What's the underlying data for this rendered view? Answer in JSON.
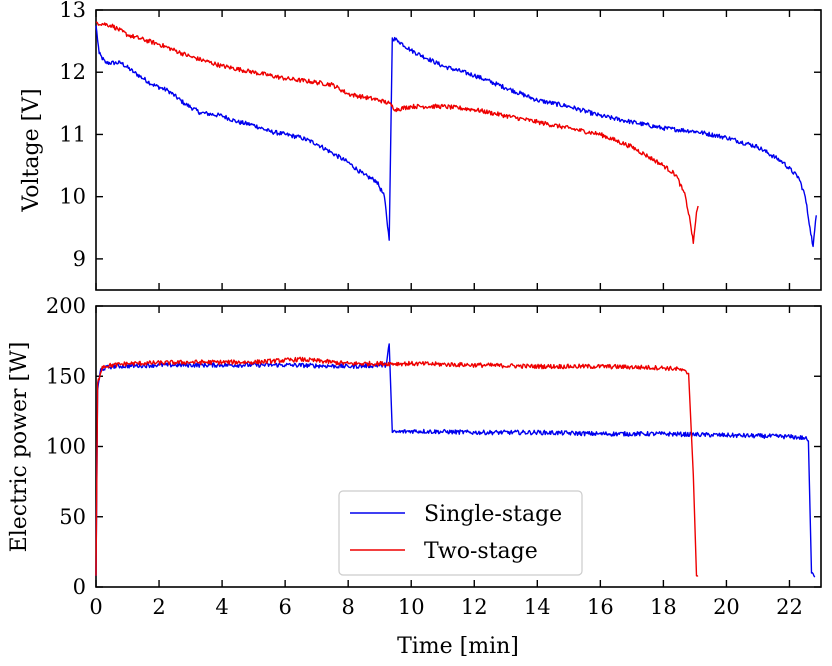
{
  "chart_data": [
    {
      "type": "line",
      "panel": "top",
      "ylabel": "Voltage [V]",
      "xlabel": "",
      "xlim": [
        0,
        23
      ],
      "ylim": [
        8.5,
        13
      ],
      "yticks": [
        9,
        10,
        11,
        12,
        13
      ],
      "series": [
        {
          "name": "Single-stage",
          "color": "#0000ee",
          "points": [
            [
              0,
              12.75
            ],
            [
              0.1,
              12.3
            ],
            [
              0.3,
              12.15
            ],
            [
              0.8,
              12.15
            ],
            [
              1.2,
              12.0
            ],
            [
              1.8,
              11.8
            ],
            [
              2.3,
              11.7
            ],
            [
              2.8,
              11.5
            ],
            [
              3.3,
              11.35
            ],
            [
              4.0,
              11.3
            ],
            [
              4.5,
              11.2
            ],
            [
              5.0,
              11.15
            ],
            [
              5.5,
              11.05
            ],
            [
              6.0,
              11.0
            ],
            [
              6.5,
              10.95
            ],
            [
              7.0,
              10.85
            ],
            [
              7.5,
              10.7
            ],
            [
              8.0,
              10.55
            ],
            [
              8.5,
              10.35
            ],
            [
              8.9,
              10.25
            ],
            [
              9.15,
              10.0
            ],
            [
              9.3,
              9.3
            ],
            [
              9.4,
              12.55
            ],
            [
              9.6,
              12.5
            ],
            [
              10.0,
              12.35
            ],
            [
              11.0,
              12.1
            ],
            [
              12.0,
              11.95
            ],
            [
              13.0,
              11.75
            ],
            [
              14.0,
              11.55
            ],
            [
              15.0,
              11.45
            ],
            [
              16.0,
              11.3
            ],
            [
              17.0,
              11.2
            ],
            [
              18.0,
              11.1
            ],
            [
              19.0,
              11.05
            ],
            [
              20.0,
              10.95
            ],
            [
              21.0,
              10.8
            ],
            [
              21.8,
              10.55
            ],
            [
              22.3,
              10.3
            ],
            [
              22.5,
              10.0
            ],
            [
              22.65,
              9.5
            ],
            [
              22.75,
              9.2
            ],
            [
              22.85,
              9.7
            ]
          ]
        },
        {
          "name": "Two-stage",
          "color": "#ee0000",
          "points": [
            [
              0,
              12.8
            ],
            [
              0.5,
              12.75
            ],
            [
              1.0,
              12.6
            ],
            [
              2.0,
              12.45
            ],
            [
              3.0,
              12.25
            ],
            [
              4.0,
              12.1
            ],
            [
              5.0,
              12.0
            ],
            [
              6.0,
              11.9
            ],
            [
              6.8,
              11.85
            ],
            [
              7.5,
              11.8
            ],
            [
              8.0,
              11.65
            ],
            [
              8.5,
              11.6
            ],
            [
              9.0,
              11.55
            ],
            [
              9.3,
              11.5
            ],
            [
              9.5,
              11.4
            ],
            [
              10.0,
              11.45
            ],
            [
              11.0,
              11.45
            ],
            [
              12.0,
              11.4
            ],
            [
              13.0,
              11.3
            ],
            [
              14.0,
              11.2
            ],
            [
              15.0,
              11.1
            ],
            [
              16.0,
              11.0
            ],
            [
              17.0,
              10.8
            ],
            [
              17.5,
              10.65
            ],
            [
              18.0,
              10.5
            ],
            [
              18.4,
              10.35
            ],
            [
              18.7,
              10.0
            ],
            [
              18.85,
              9.6
            ],
            [
              18.95,
              9.25
            ],
            [
              19.05,
              9.75
            ],
            [
              19.1,
              9.85
            ]
          ]
        }
      ]
    },
    {
      "type": "line",
      "panel": "bottom",
      "ylabel": "Electric power [W]",
      "xlabel": "Time [min]",
      "xlim": [
        0,
        23
      ],
      "ylim": [
        0,
        200
      ],
      "yticks": [
        0,
        50,
        100,
        150,
        200
      ],
      "xticks": [
        0,
        2,
        4,
        6,
        8,
        10,
        12,
        14,
        16,
        18,
        20,
        22
      ],
      "legend": "lower-center",
      "series": [
        {
          "name": "Single-stage",
          "color": "#0000ee",
          "points": [
            [
              0,
              8
            ],
            [
              0.05,
              140
            ],
            [
              0.15,
              155
            ],
            [
              0.5,
              157
            ],
            [
              2.0,
              158
            ],
            [
              4.0,
              158
            ],
            [
              6.0,
              158
            ],
            [
              8.0,
              157
            ],
            [
              9.2,
              158
            ],
            [
              9.3,
              173
            ],
            [
              9.4,
              110
            ],
            [
              10.0,
              111
            ],
            [
              12.0,
              110
            ],
            [
              14.0,
              110
            ],
            [
              16.0,
              109
            ],
            [
              18.0,
              109
            ],
            [
              20.0,
              108
            ],
            [
              22.0,
              107
            ],
            [
              22.5,
              106
            ],
            [
              22.6,
              104
            ],
            [
              22.7,
              10
            ],
            [
              22.8,
              7
            ]
          ]
        },
        {
          "name": "Two-stage",
          "color": "#ee0000",
          "points": [
            [
              0,
              8
            ],
            [
              0.05,
              145
            ],
            [
              0.2,
              157
            ],
            [
              1.0,
              159
            ],
            [
              3.0,
              160
            ],
            [
              5.0,
              160
            ],
            [
              6.5,
              162
            ],
            [
              8.0,
              159
            ],
            [
              10.0,
              159
            ],
            [
              12.0,
              158
            ],
            [
              14.0,
              157
            ],
            [
              16.0,
              157
            ],
            [
              18.0,
              156
            ],
            [
              18.5,
              155
            ],
            [
              18.8,
              152
            ],
            [
              18.95,
              80
            ],
            [
              19.05,
              8
            ],
            [
              19.1,
              8
            ]
          ]
        }
      ]
    }
  ]
}
